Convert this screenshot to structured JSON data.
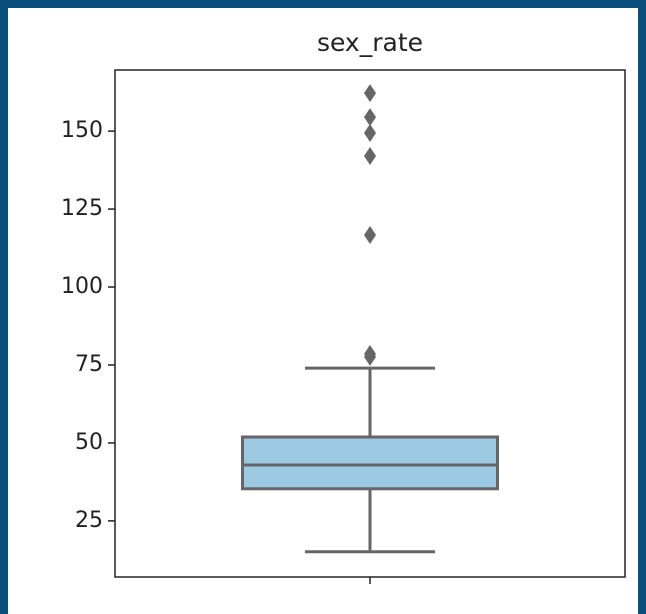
{
  "chart_data": {
    "type": "box",
    "title": "sex_rate",
    "categories": [
      null
    ],
    "whisker_low": [
      15.1
    ],
    "q1": [
      35.3
    ],
    "median": [
      42.9
    ],
    "q3": [
      51.9
    ],
    "whisker_high": [
      74.0
    ],
    "outliers": [
      [
        77.6,
        78.5,
        116.7,
        142.0,
        149.4,
        154.5,
        162.2
      ]
    ],
    "color": "#9ccae3",
    "edge_color": "#666666",
    "ylim": [
      7.0,
      169.6
    ],
    "yticks": [
      25,
      50,
      75,
      100,
      125,
      150
    ]
  }
}
